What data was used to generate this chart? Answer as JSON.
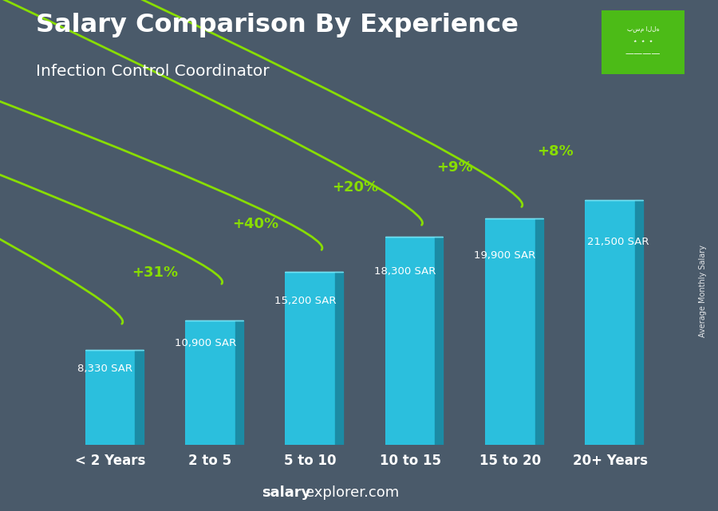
{
  "title": "Salary Comparison By Experience",
  "subtitle": "Infection Control Coordinator",
  "categories": [
    "< 2 Years",
    "2 to 5",
    "5 to 10",
    "10 to 15",
    "15 to 20",
    "20+ Years"
  ],
  "values": [
    8330,
    10900,
    15200,
    18300,
    19900,
    21500
  ],
  "value_labels": [
    "8,330 SAR",
    "10,900 SAR",
    "15,200 SAR",
    "18,300 SAR",
    "19,900 SAR",
    "21,500 SAR"
  ],
  "pct_labels": [
    "+31%",
    "+40%",
    "+20%",
    "+9%",
    "+8%"
  ],
  "bar_color_face": "#29c8e8",
  "bar_color_right": "#1890aa",
  "bar_color_top": "#7de8f8",
  "arrow_color": "#88dd00",
  "pct_color": "#88dd00",
  "title_color": "#ffffff",
  "subtitle_color": "#ffffff",
  "label_color": "#ffffff",
  "watermark_salary_color": "#ffffff",
  "watermark_rest_color": "#ffffff",
  "right_label": "Average Monthly Salary",
  "bg_color": "#4a5a6a",
  "ylim": [
    0,
    27000
  ],
  "flag_color": "#4caf50"
}
